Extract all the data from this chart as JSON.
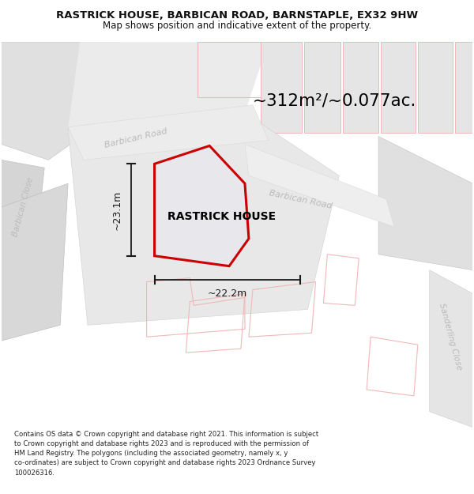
{
  "title": "RASTRICK HOUSE, BARBICAN ROAD, BARNSTAPLE, EX32 9HW",
  "subtitle": "Map shows position and indicative extent of the property.",
  "footer_line1": "Contains OS data © Crown copyright and database right 2021. This information is subject",
  "footer_line2": "to Crown copyright and database rights 2023 and is reproduced with the permission of",
  "footer_line3": "HM Land Registry. The polygons (including the associated geometry, namely x, y",
  "footer_line4": "co-ordinates) are subject to Crown copyright and database rights 2023 Ordnance Survey",
  "footer_line5": "100026316.",
  "area_label": "~312m²/~0.077ac.",
  "property_label": "RASTRICK HOUSE",
  "dim_width": "~22.2m",
  "dim_height": "~23.1m",
  "bg_color": "#f7f7f7",
  "road_bg": "#efefef",
  "block_gray": "#e2e2e2",
  "block_dark": "#d0d0d0",
  "property_fill": "#e8e8ec",
  "property_edge": "#cc0000",
  "pink": "#f0b8b8",
  "road_label_color": "#bbbbbb",
  "dim_color": "#1a1a1a",
  "title_color": "#111111"
}
